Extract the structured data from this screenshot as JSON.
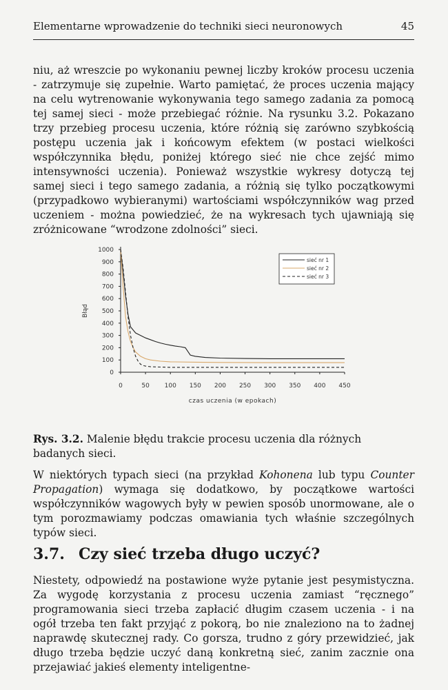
{
  "header": {
    "running_title": "Elementarne wprowadzenie do techniki sieci neuronowych",
    "page_number": "45"
  },
  "paragraphs": {
    "p1": "niu, aż wreszcie po wykonaniu pewnej liczby kroków procesu uczenia - zatrzymuje się zupełnie. Warto pamiętać, że proces uczenia mający na celu wytrenowanie wykonywania tego samego zadania za pomocą tej samej sieci - może przebiegać różnie. Na rysunku 3.2. Pokazano trzy przebieg procesu uczenia, które różnią się zarówno szybkością postępu uczenia jak i końcowym efektem (w postaci wielkości współczynnika błędu, poniżej którego sieć nie chce zejść mimo intensywności uczenia). Ponieważ wszystkie wykresy dotyczą tej samej sieci i tego samego zadania, a różnią się tylko początkowymi (przypadkowo wybieranymi) wartościami współczynników wag przed uczeniem - można powiedzieć, że na wykresach tych ujawniają się zróżnicowane “wrodzone zdolności” sieci.",
    "p2_a": "W niektórych typach sieci (na przykład ",
    "p2_kohonen": "Kohonena",
    "p2_b": " lub typu ",
    "p2_cp": "Counter Propagation",
    "p2_c": ") wymaga się dodatkowo, by początkowe wartości współczynników wagowych były w pewien sposób unormowane, ale o tym porozmawiamy podczas omawiania tych właśnie szczególnych typów sieci.",
    "p3": "Niestety, odpowiedź na postawione wyże pytanie jest pesymistyczna. Za wygodę korzystania z procesu uczenia zamiast “ręcznego” programowania sieci trzeba zapłacić długim czasem uczenia - i na ogół trzeba ten fakt przyjąć z pokorą, bo nie znaleziono na to żadnej naprawdę skutecznej rady. Co gorsza, trudno z góry przewidzieć, jak długo trzeba będzie uczyć daną konkretną sieć, zanim zacznie ona przejawiać jakieś elementy inteligentne-"
  },
  "caption": {
    "label": "Rys. 3.2.",
    "text": "Malenie błędu trakcie procesu uczenia dla różnych badanych sieci."
  },
  "section": {
    "number": "3.7.",
    "title": "Czy sieć trzeba długo uczyć?"
  },
  "chart_data": {
    "type": "line",
    "xlabel": "czas uczenia (w epokach)",
    "ylabel": "Błąd",
    "xlim": [
      0,
      450
    ],
    "ylim": [
      0,
      1000
    ],
    "xticks": [
      "0",
      "50",
      "100",
      "150",
      "200",
      "250",
      "300",
      "350",
      "400",
      "450"
    ],
    "yticks": [
      "0",
      "100",
      "200",
      "300",
      "400",
      "500",
      "600",
      "700",
      "800",
      "900",
      "1000"
    ],
    "legend_placement": "top-right",
    "series": [
      {
        "name": "sieć nr 1",
        "color": "#222222",
        "dash": "solid",
        "x": [
          0,
          5,
          10,
          15,
          20,
          30,
          40,
          50,
          60,
          70,
          80,
          90,
          100,
          110,
          120,
          130,
          140,
          150,
          170,
          200,
          250,
          300,
          350,
          400,
          450
        ],
        "y": [
          1000,
          820,
          620,
          470,
          370,
          320,
          300,
          280,
          265,
          250,
          238,
          228,
          220,
          213,
          208,
          200,
          140,
          130,
          120,
          115,
          112,
          110,
          110,
          110,
          110
        ]
      },
      {
        "name": "sieć nr 2",
        "color": "#d9a86a",
        "dash": "solid",
        "x": [
          0,
          5,
          10,
          15,
          20,
          25,
          30,
          40,
          50,
          60,
          80,
          100,
          150,
          200,
          250,
          300,
          350,
          400,
          450
        ],
        "y": [
          1000,
          700,
          450,
          330,
          250,
          200,
          165,
          130,
          110,
          100,
          90,
          85,
          82,
          80,
          79,
          78,
          78,
          78,
          78
        ]
      },
      {
        "name": "sieć nr 3",
        "color": "#222222",
        "dash": "dashed",
        "x": [
          0,
          5,
          10,
          15,
          20,
          25,
          30,
          35,
          40,
          45,
          50,
          60,
          80,
          100,
          150,
          200,
          300,
          400,
          450
        ],
        "y": [
          1000,
          850,
          650,
          450,
          300,
          200,
          130,
          90,
          65,
          55,
          50,
          45,
          42,
          40,
          40,
          40,
          40,
          40,
          40
        ]
      }
    ]
  }
}
